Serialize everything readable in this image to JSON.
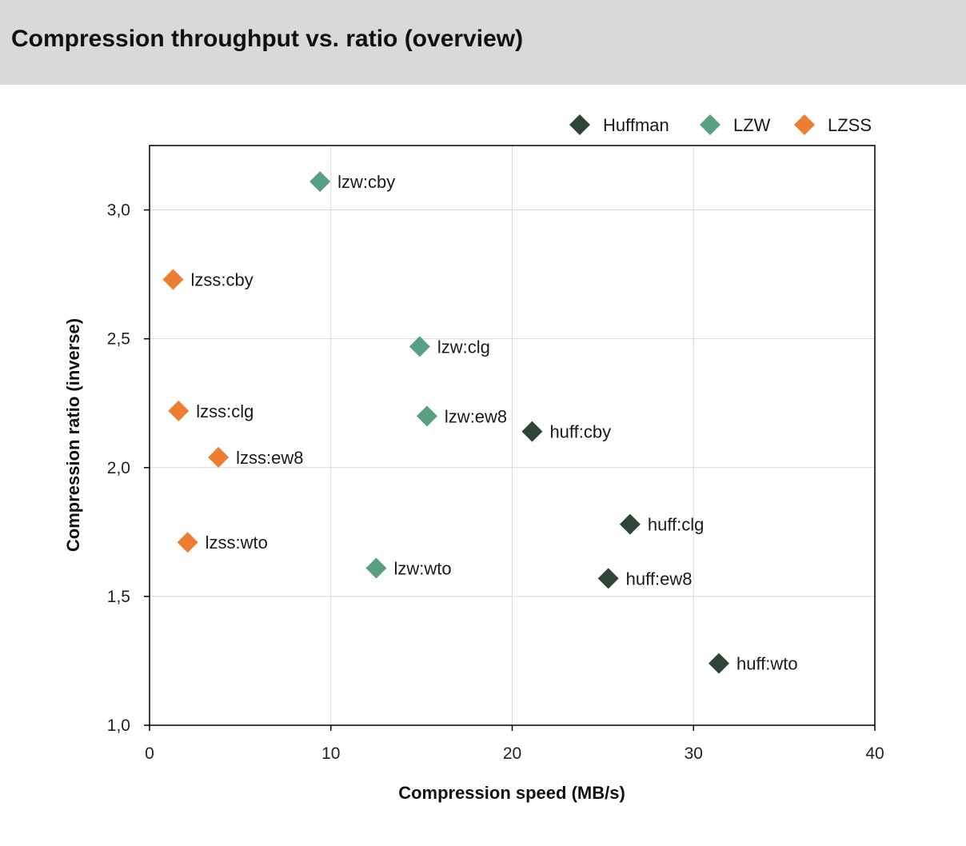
{
  "title": "Compression throughput vs. ratio (overview)",
  "chart_data": {
    "type": "scatter",
    "xlabel": "Compression speed (MB/s)",
    "ylabel": "Compression ratio (inverse)",
    "xlim": [
      0,
      40
    ],
    "ylim": [
      1.0,
      3.25
    ],
    "xticks": [
      0,
      10,
      20,
      30,
      40
    ],
    "xtick_labels": [
      "0",
      "10",
      "20",
      "30",
      "40"
    ],
    "yticks": [
      1.0,
      1.5,
      2.0,
      2.5,
      3.0
    ],
    "ytick_labels": [
      "1,0",
      "1,5",
      "2,0",
      "2,5",
      "3,0"
    ],
    "grid": true,
    "legend_position": "top-right",
    "marker": "diamond",
    "series": [
      {
        "name": "Huffman",
        "color": "#2f4538",
        "points": [
          {
            "label": "huff:cby",
            "x": 21.1,
            "y": 2.14
          },
          {
            "label": "huff:clg",
            "x": 26.5,
            "y": 1.78
          },
          {
            "label": "huff:ew8",
            "x": 25.3,
            "y": 1.57
          },
          {
            "label": "huff:wto",
            "x": 31.4,
            "y": 1.24
          }
        ]
      },
      {
        "name": "LZW",
        "color": "#5a9e84",
        "points": [
          {
            "label": "lzw:cby",
            "x": 9.4,
            "y": 3.11
          },
          {
            "label": "lzw:clg",
            "x": 14.9,
            "y": 2.47
          },
          {
            "label": "lzw:ew8",
            "x": 15.3,
            "y": 2.2
          },
          {
            "label": "lzw:wto",
            "x": 12.5,
            "y": 1.61
          }
        ]
      },
      {
        "name": "LZSS",
        "color": "#ed7d31",
        "points": [
          {
            "label": "lzss:cby",
            "x": 1.3,
            "y": 2.73
          },
          {
            "label": "lzss:clg",
            "x": 1.6,
            "y": 2.22
          },
          {
            "label": "lzss:ew8",
            "x": 3.8,
            "y": 2.04
          },
          {
            "label": "lzss:wto",
            "x": 2.1,
            "y": 1.71
          }
        ]
      }
    ]
  }
}
